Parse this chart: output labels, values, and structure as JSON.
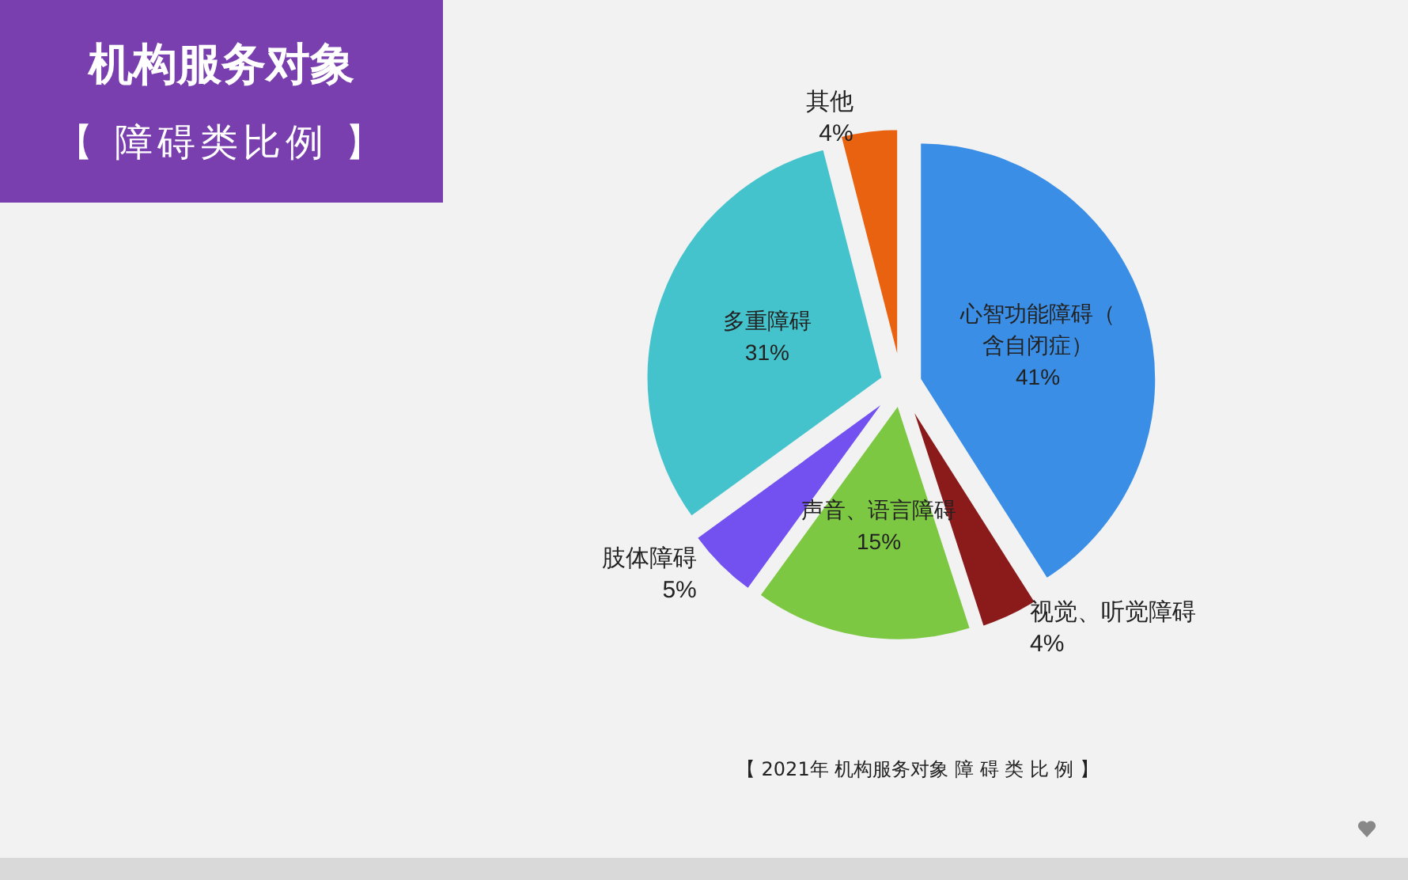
{
  "chart_data": {
    "type": "pie",
    "title": "机构服务对象",
    "subtitle": "【 障碍类比例 】",
    "categories": [
      "心智功能障碍（含自闭症）",
      "视觉、听觉障碍",
      "声音、语言障碍",
      "肢体障碍",
      "多重障碍",
      "其他"
    ],
    "values": [
      41,
      4,
      15,
      5,
      31,
      4
    ],
    "colors": [
      "#3a8ee6",
      "#8b1a1a",
      "#7dc843",
      "#7351f0",
      "#45c3cc",
      "#e8620f"
    ],
    "value_labels": [
      "41%",
      "4%",
      "15%",
      "5%",
      "31%",
      "4%"
    ],
    "annotations": [
      "【 2021年 机构服务对象 障 碍 类 比 例 】"
    ]
  }
}
